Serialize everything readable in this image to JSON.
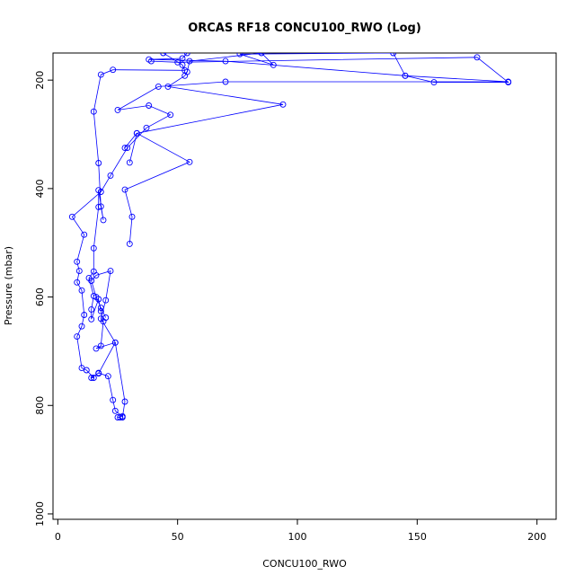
{
  "chart_data": {
    "type": "line",
    "title": "ORCAS RF18 CONCU100_RWO (Log)",
    "xlabel": "CONCU100_RWO",
    "ylabel": "Pressure (mbar)",
    "xlim": [
      -2,
      208
    ],
    "ylim": [
      1010,
      150
    ],
    "y_reversed": true,
    "x_ticks": [
      0,
      50,
      100,
      150,
      200
    ],
    "y_ticks": [
      200,
      400,
      600,
      800,
      1000
    ],
    "grid": false,
    "legend": "none",
    "series_color": "#0000ff",
    "series": [
      {
        "points": [
          [
            26,
            822
          ],
          [
            25,
            822
          ],
          [
            27,
            820
          ],
          [
            24,
            810
          ],
          [
            23,
            790
          ],
          [
            21,
            746
          ],
          [
            17,
            740
          ],
          [
            14,
            749
          ],
          [
            15,
            749
          ],
          [
            12,
            735
          ],
          [
            10,
            731
          ],
          [
            8,
            673
          ],
          [
            10,
            654
          ],
          [
            11,
            633
          ],
          [
            10,
            588
          ],
          [
            8,
            573
          ],
          [
            9,
            552
          ],
          [
            8,
            535
          ],
          [
            11,
            485
          ],
          [
            6,
            452
          ],
          [
            18,
            406
          ],
          [
            22,
            376
          ],
          [
            29,
            325
          ],
          [
            37,
            288
          ],
          [
            47,
            264
          ],
          [
            38,
            247
          ],
          [
            25,
            255
          ],
          [
            42,
            212
          ],
          [
            70,
            203
          ],
          [
            188,
            203
          ],
          [
            145,
            192
          ],
          [
            70,
            165
          ],
          [
            38,
            162
          ],
          [
            52,
            160
          ],
          [
            54,
            150
          ],
          [
            44,
            150
          ],
          [
            52,
            172
          ],
          [
            53,
            182
          ],
          [
            23,
            181
          ],
          [
            18,
            190
          ],
          [
            15,
            258
          ],
          [
            17,
            353
          ],
          [
            18,
            433
          ],
          [
            19,
            458
          ],
          [
            17,
            403
          ],
          [
            17,
            434
          ],
          [
            15,
            510
          ],
          [
            15,
            553
          ],
          [
            13,
            565
          ],
          [
            15,
            598
          ],
          [
            14,
            623
          ],
          [
            14,
            641
          ],
          [
            17,
            604
          ],
          [
            18,
            626
          ],
          [
            19,
            645
          ],
          [
            18,
            690
          ],
          [
            16,
            695
          ],
          [
            24,
            684
          ],
          [
            18,
            640
          ],
          [
            20,
            606
          ],
          [
            22,
            552
          ],
          [
            16,
            560
          ],
          [
            14,
            570
          ],
          [
            16,
            600
          ],
          [
            18,
            620
          ],
          [
            20,
            638
          ]
        ]
      },
      {
        "points": [
          [
            27,
            822
          ],
          [
            28,
            793
          ],
          [
            24,
            684
          ],
          [
            17,
            741
          ]
        ]
      },
      {
        "points": [
          [
            30,
            502
          ],
          [
            31,
            452
          ],
          [
            28,
            402
          ],
          [
            55,
            351
          ],
          [
            33,
            298
          ],
          [
            94,
            245
          ],
          [
            46,
            212
          ],
          [
            53,
            192
          ],
          [
            54,
            185
          ],
          [
            55,
            165
          ],
          [
            85,
            150
          ],
          [
            90,
            172
          ],
          [
            76,
            152
          ],
          [
            140,
            150
          ],
          [
            145,
            192
          ],
          [
            157,
            204
          ],
          [
            188,
            204
          ],
          [
            175,
            158
          ],
          [
            50,
            167
          ],
          [
            39,
            165
          ]
        ]
      },
      {
        "points": [
          [
            30,
            352
          ],
          [
            33,
            298
          ],
          [
            28,
            325
          ]
        ]
      }
    ]
  }
}
